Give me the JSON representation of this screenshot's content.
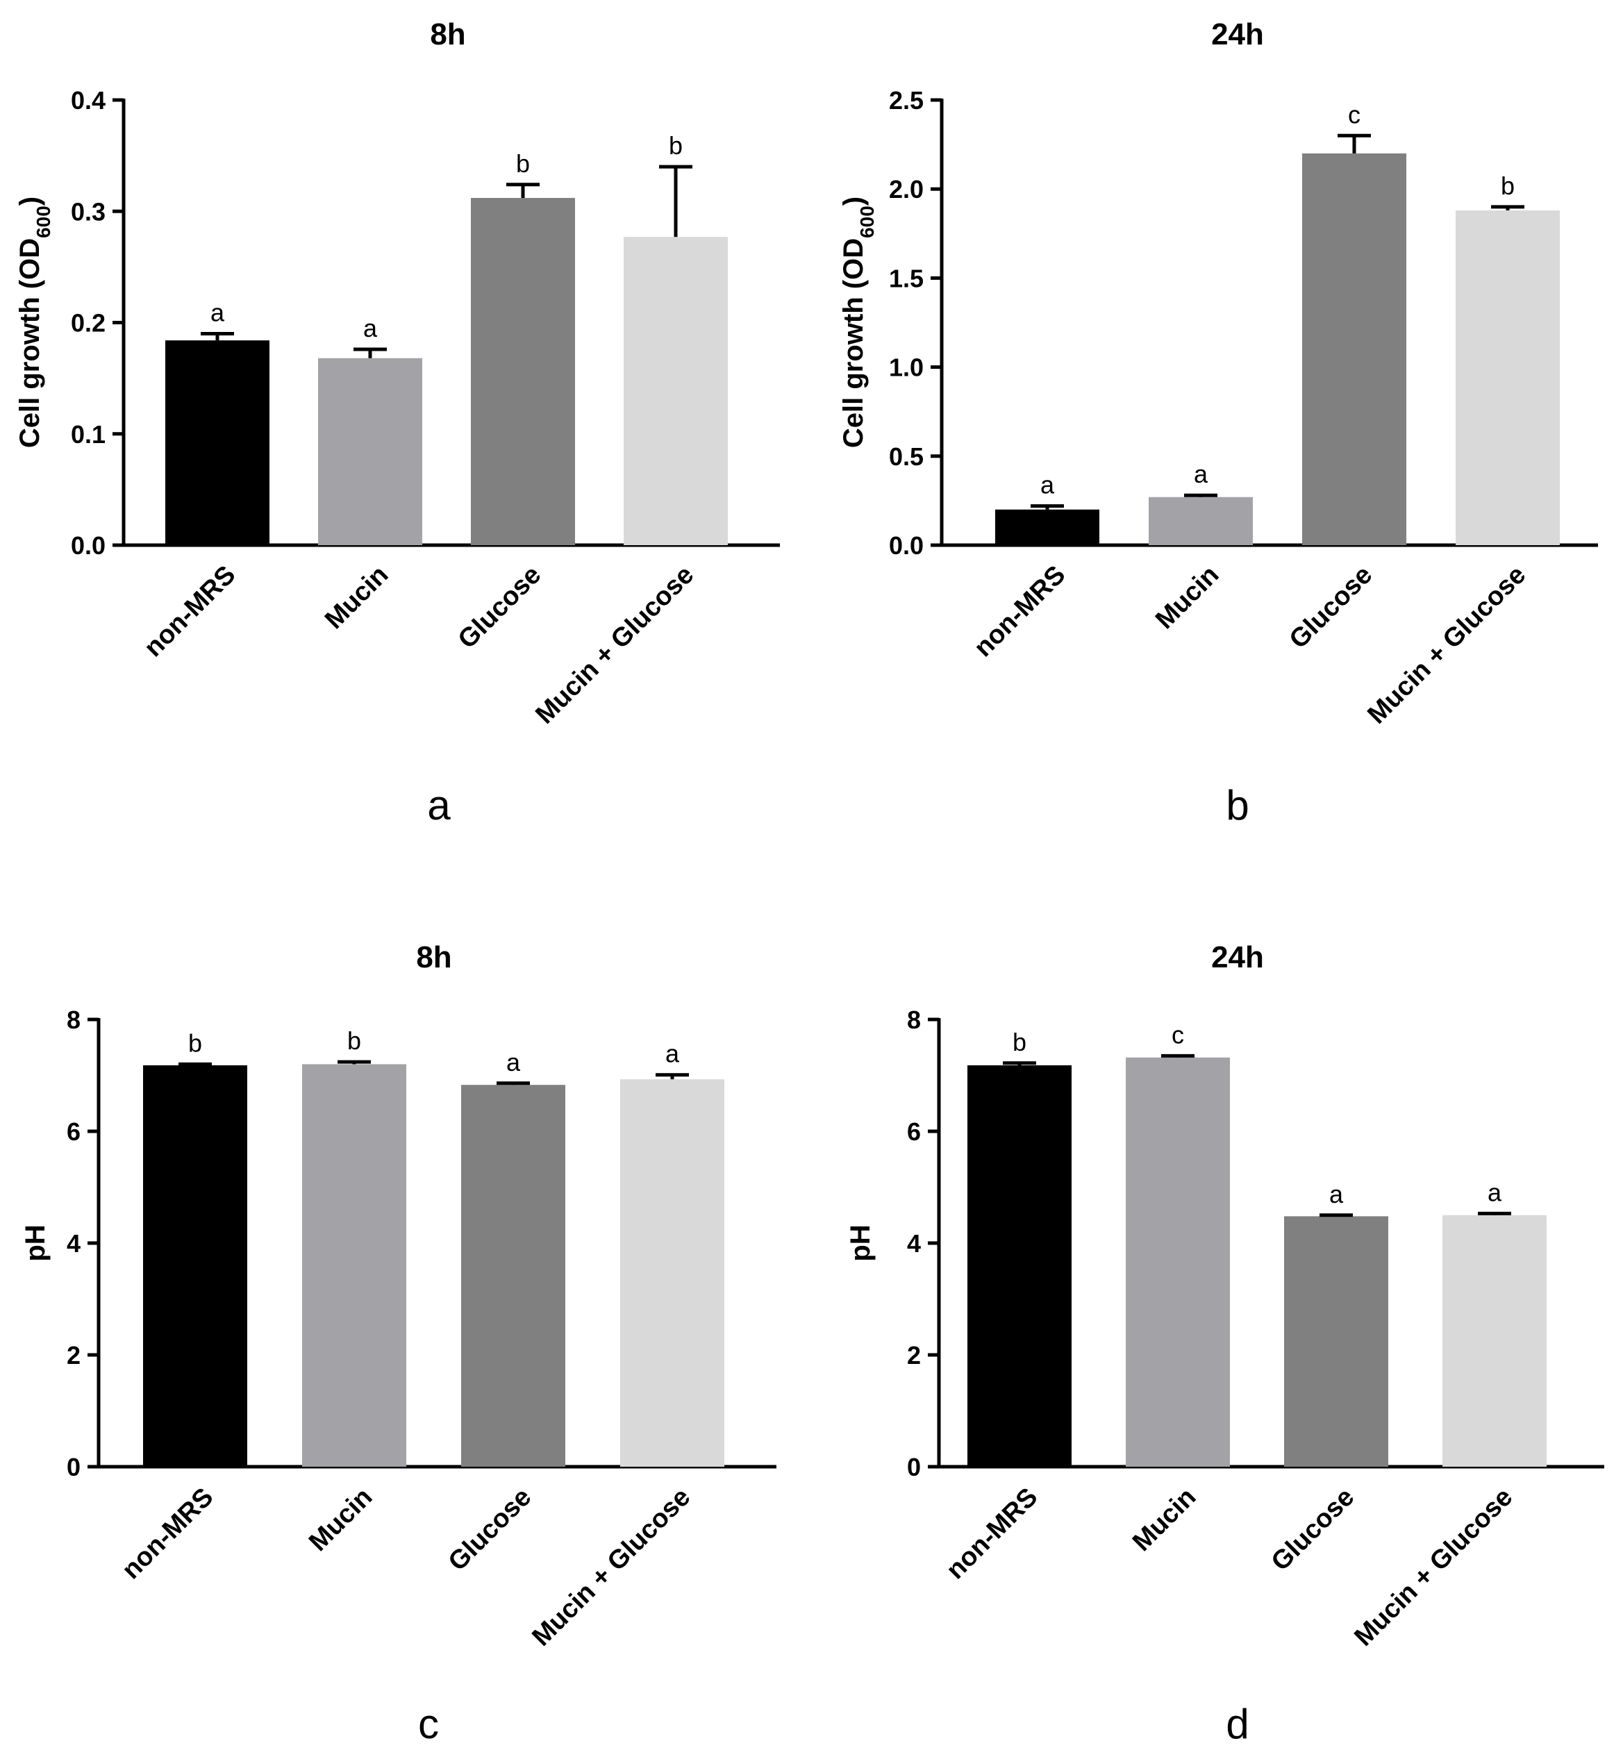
{
  "chart_data": [
    {
      "type": "bar",
      "panel": "a",
      "title": "8h",
      "ylabel": "Cell growth (OD",
      "ylabel_sub": "600",
      "ylabel_end": ")",
      "xlabel": "",
      "ylim": [
        0,
        0.4
      ],
      "yticks": [
        0.0,
        0.1,
        0.2,
        0.3,
        0.4
      ],
      "ytick_labels": [
        "0.0",
        "0.1",
        "0.2",
        "0.3",
        "0.4"
      ],
      "categories": [
        "non-MRS",
        "Mucin",
        "Glucose",
        "Mucin + Glucose"
      ],
      "values": [
        0.184,
        0.168,
        0.312,
        0.277
      ],
      "errors": [
        0.006,
        0.008,
        0.012,
        0.063
      ],
      "significance": [
        "a",
        "a",
        "b",
        "b"
      ],
      "colors": [
        "#000000",
        "#a3a3a7",
        "#808080",
        "#d9d9d9"
      ]
    },
    {
      "type": "bar",
      "panel": "b",
      "title": "24h",
      "ylabel": "Cell growth (OD",
      "ylabel_sub": "600",
      "ylabel_end": ")",
      "xlabel": "",
      "ylim": [
        0,
        2.5
      ],
      "yticks": [
        0.0,
        0.5,
        1.0,
        1.5,
        2.0,
        2.5
      ],
      "ytick_labels": [
        "0.0",
        "0.5",
        "1.0",
        "1.5",
        "2.0",
        "2.5"
      ],
      "categories": [
        "non-MRS",
        "Mucin",
        "Glucose",
        "Mucin + Glucose"
      ],
      "values": [
        0.2,
        0.27,
        2.2,
        1.88
      ],
      "errors": [
        0.02,
        0.01,
        0.1,
        0.02
      ],
      "significance": [
        "a",
        "a",
        "c",
        "b"
      ],
      "colors": [
        "#000000",
        "#a3a3a7",
        "#808080",
        "#d9d9d9"
      ]
    },
    {
      "type": "bar",
      "panel": "c",
      "title": "8h",
      "ylabel": "pH",
      "ylabel_sub": "",
      "ylabel_end": "",
      "xlabel": "",
      "ylim": [
        0,
        8
      ],
      "yticks": [
        0,
        2,
        4,
        6,
        8
      ],
      "ytick_labels": [
        "0",
        "2",
        "4",
        "6",
        "8"
      ],
      "categories": [
        "non-MRS",
        "Mucin",
        "Glucose",
        "Mucin + Glucose"
      ],
      "values": [
        7.18,
        7.2,
        6.83,
        6.93
      ],
      "errors": [
        0.02,
        0.04,
        0.03,
        0.08
      ],
      "significance": [
        "b",
        "b",
        "a",
        "a"
      ],
      "colors": [
        "#000000",
        "#a3a3a7",
        "#808080",
        "#d9d9d9"
      ]
    },
    {
      "type": "bar",
      "panel": "d",
      "title": "24h",
      "ylabel": "pH",
      "ylabel_sub": "",
      "ylabel_end": "",
      "xlabel": "",
      "ylim": [
        0,
        8
      ],
      "yticks": [
        0,
        2,
        4,
        6,
        8
      ],
      "ytick_labels": [
        "0",
        "2",
        "4",
        "6",
        "8"
      ],
      "categories": [
        "non-MRS",
        "Mucin",
        "Glucose",
        "Mucin + Glucose"
      ],
      "values": [
        7.18,
        7.32,
        4.48,
        4.5
      ],
      "errors": [
        0.04,
        0.03,
        0.02,
        0.03
      ],
      "significance": [
        "b",
        "c",
        "a",
        "a"
      ],
      "colors": [
        "#000000",
        "#a3a3a7",
        "#808080",
        "#d9d9d9"
      ]
    }
  ]
}
